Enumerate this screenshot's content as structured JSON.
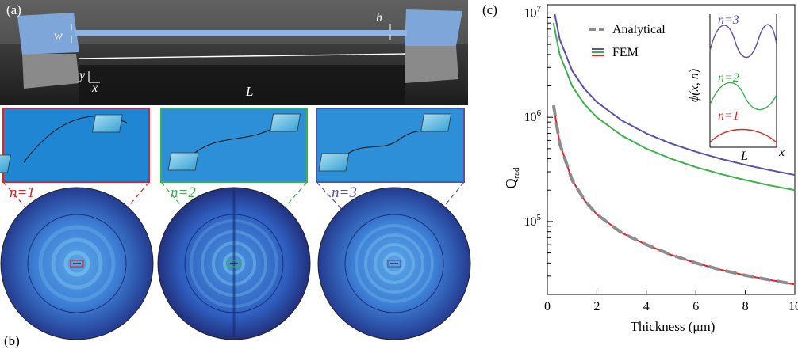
{
  "panel_a": {
    "label": "(a)",
    "w": "w",
    "h": "h",
    "L": "L",
    "y": "y",
    "x": "x"
  },
  "panel_b": {
    "label": "(b)",
    "modes": [
      "n=1",
      "n=2",
      "n=3"
    ],
    "mode_colors": [
      "#e0242a",
      "#3bb14a",
      "#5b4fa6"
    ]
  },
  "panel_c": {
    "label": "(c)",
    "legend": {
      "analytical": "Analytical",
      "fem": "FEM"
    },
    "inset": {
      "ylabel": "ϕ(x, n)",
      "xlabel": "L",
      "xaxis": "x",
      "n3": "n=3",
      "n2": "n=2",
      "n1": "n=1"
    }
  },
  "chart_data": {
    "type": "line",
    "xlabel": "Thickness (μm)",
    "ylabel": "Q_rad",
    "xlim": [
      0,
      10
    ],
    "ylim": [
      20000,
      12000000
    ],
    "yscale": "log",
    "xticks": [
      0,
      2,
      4,
      6,
      8,
      10
    ],
    "yticks": [
      "10^5",
      "10^6",
      "10^7"
    ],
    "series": [
      {
        "name": "n=3 FEM",
        "color": "#5b4fa6",
        "x": [
          0.25,
          0.5,
          1,
          1.5,
          2,
          3,
          4,
          5,
          6,
          7,
          8,
          9,
          10
        ],
        "y": [
          11200000,
          5600000,
          2800000,
          1870000,
          1400000,
          935000,
          700000,
          560000,
          467000,
          400000,
          350000,
          311000,
          280000
        ]
      },
      {
        "name": "n=2 FEM",
        "color": "#3bb14a",
        "x": [
          0.25,
          0.5,
          1,
          1.5,
          2,
          3,
          4,
          5,
          6,
          7,
          8,
          9,
          10
        ],
        "y": [
          8000000,
          4000000,
          2000000,
          1330000,
          1000000,
          670000,
          500000,
          400000,
          333000,
          286000,
          250000,
          222000,
          200000
        ]
      },
      {
        "name": "n=1 FEM",
        "color": "#e0242a",
        "x": [
          0.25,
          0.5,
          1,
          1.5,
          2,
          3,
          4,
          5,
          6,
          7,
          8,
          9,
          10
        ],
        "y": [
          1300000,
          560000,
          250000,
          160000,
          117000,
          78000,
          60000,
          48000,
          40000,
          34500,
          30500,
          27500,
          25000
        ]
      },
      {
        "name": "Analytical",
        "color": "#8c8c8c",
        "dashed": true,
        "x": [
          0.25,
          0.5,
          1,
          1.5,
          2,
          3,
          4,
          5,
          6,
          7,
          8,
          9,
          10
        ],
        "y": [
          1300000,
          560000,
          250000,
          160000,
          117000,
          78000,
          60000,
          48000,
          40000,
          34500,
          30500,
          27500,
          25000
        ]
      }
    ]
  }
}
